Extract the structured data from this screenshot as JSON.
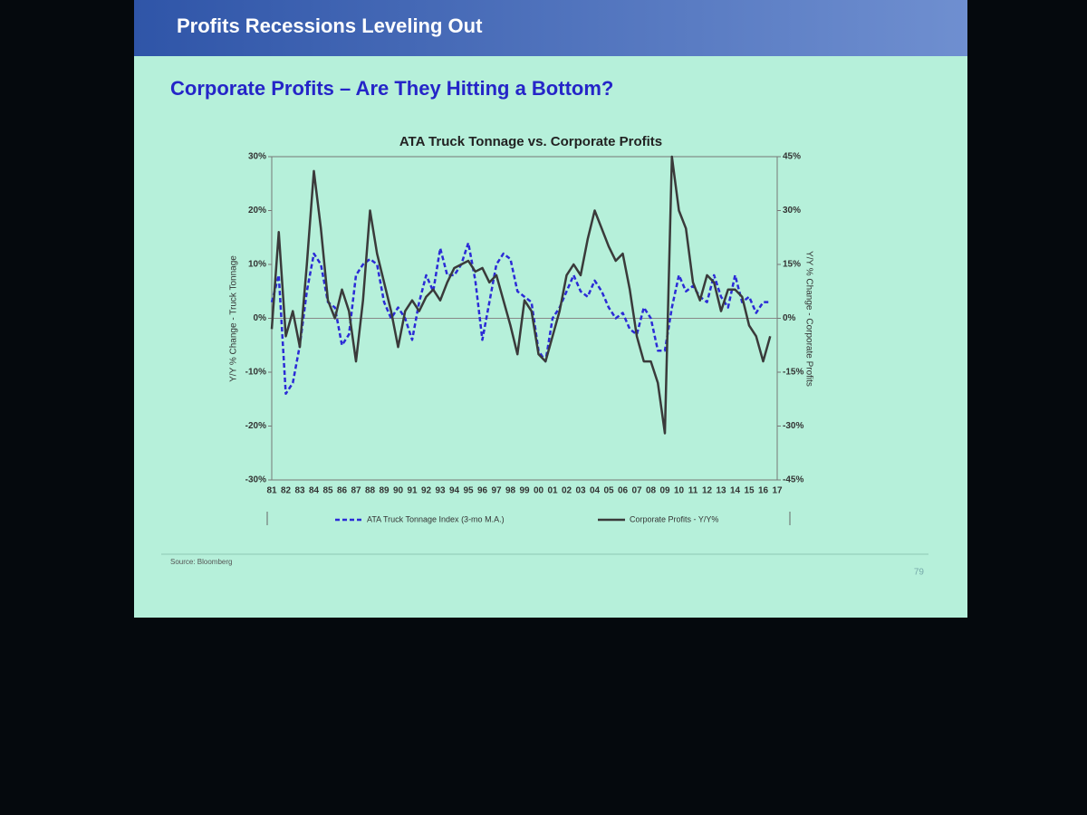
{
  "header": {
    "title": "Profits Recessions Leveling Out",
    "subtitle": "Corporate Profits – Are They Hitting a Bottom?"
  },
  "footer": {
    "source": "Source: Bloomberg",
    "page": "79"
  },
  "chart_data": {
    "type": "line",
    "title": "ATA Truck Tonnage vs. Corporate Profits",
    "y_label": "Y/Y % Change - Truck Tonnage",
    "y2_label": "Y/Y % Change - Corporate Profits",
    "categories": [
      "81",
      null,
      "82",
      null,
      "83",
      null,
      "84",
      null,
      "85",
      null,
      "86",
      null,
      "87",
      null,
      "88",
      null,
      "89",
      null,
      "90",
      null,
      "91",
      null,
      "92",
      null,
      "93",
      null,
      "94",
      null,
      "95",
      null,
      "96",
      null,
      "97",
      null,
      "98",
      null,
      "99",
      null,
      "00",
      null,
      "01",
      null,
      "02",
      null,
      "03",
      null,
      "04",
      null,
      "05",
      null,
      "06",
      null,
      "07",
      null,
      "08",
      null,
      "09",
      null,
      "10",
      null,
      "11",
      null,
      "12",
      null,
      "13",
      null,
      "14",
      null,
      "15",
      null,
      "16",
      null,
      "17"
    ],
    "series": [
      {
        "name": "ATA Truck Tonnage Index (3-mo M.A.)",
        "color": "#2b2bd6",
        "dashed": true,
        "values": [
          3,
          8,
          -14,
          -12,
          -5,
          5,
          12,
          10,
          3,
          2,
          -5,
          -3,
          8,
          10,
          11,
          10,
          3,
          0,
          2,
          0,
          -4,
          3,
          8,
          5,
          13,
          8,
          8,
          10,
          14,
          7,
          -4,
          3,
          10,
          12,
          11,
          5,
          4,
          3,
          -6,
          -8,
          0,
          2,
          5,
          8,
          5,
          4,
          7,
          5,
          2,
          0,
          1,
          -2,
          -3,
          2,
          0,
          -6,
          -6,
          2,
          8,
          5,
          6,
          4,
          3,
          8,
          4,
          2,
          8,
          3,
          4,
          1,
          3,
          3,
          null
        ]
      },
      {
        "name": "Corporate Profits - Y/Y%",
        "color": "#3a3a3a",
        "axis": "y2",
        "values": [
          -3,
          24,
          -5,
          2,
          -8,
          15,
          41,
          25,
          5,
          0,
          8,
          2,
          -12,
          5,
          30,
          18,
          10,
          2,
          -8,
          2,
          5,
          2,
          6,
          8,
          5,
          10,
          14,
          15,
          16,
          13,
          14,
          10,
          12,
          5,
          -2,
          -10,
          5,
          2,
          -10,
          -12,
          -5,
          2,
          12,
          15,
          12,
          22,
          30,
          25,
          20,
          16,
          18,
          8,
          -5,
          -12,
          -12,
          -18,
          -32,
          45,
          30,
          25,
          10,
          5,
          12,
          10,
          2,
          8,
          8,
          6,
          -2,
          -5,
          -12,
          -5,
          null
        ]
      }
    ],
    "ylim": [
      -30,
      30
    ],
    "yticks": [
      {
        "value": -30,
        "label": "-30%"
      },
      {
        "value": -20,
        "label": "-20%"
      },
      {
        "value": -10,
        "label": "-10%"
      },
      {
        "value": 0,
        "label": "0%"
      },
      {
        "value": 10,
        "label": "10%"
      },
      {
        "value": 20,
        "label": "20%"
      },
      {
        "value": 30,
        "label": "30%"
      }
    ],
    "y2lim": [
      -45,
      45
    ],
    "y2ticks": [
      {
        "value": -45,
        "label": "-45%"
      },
      {
        "value": -30,
        "label": "-30%"
      },
      {
        "value": -15,
        "label": "-15%"
      },
      {
        "value": 0,
        "label": "0%"
      },
      {
        "value": 15,
        "label": "15%"
      },
      {
        "value": 30,
        "label": "30%"
      },
      {
        "value": 45,
        "label": "45%"
      }
    ],
    "grid": false,
    "legend": "bottom"
  }
}
